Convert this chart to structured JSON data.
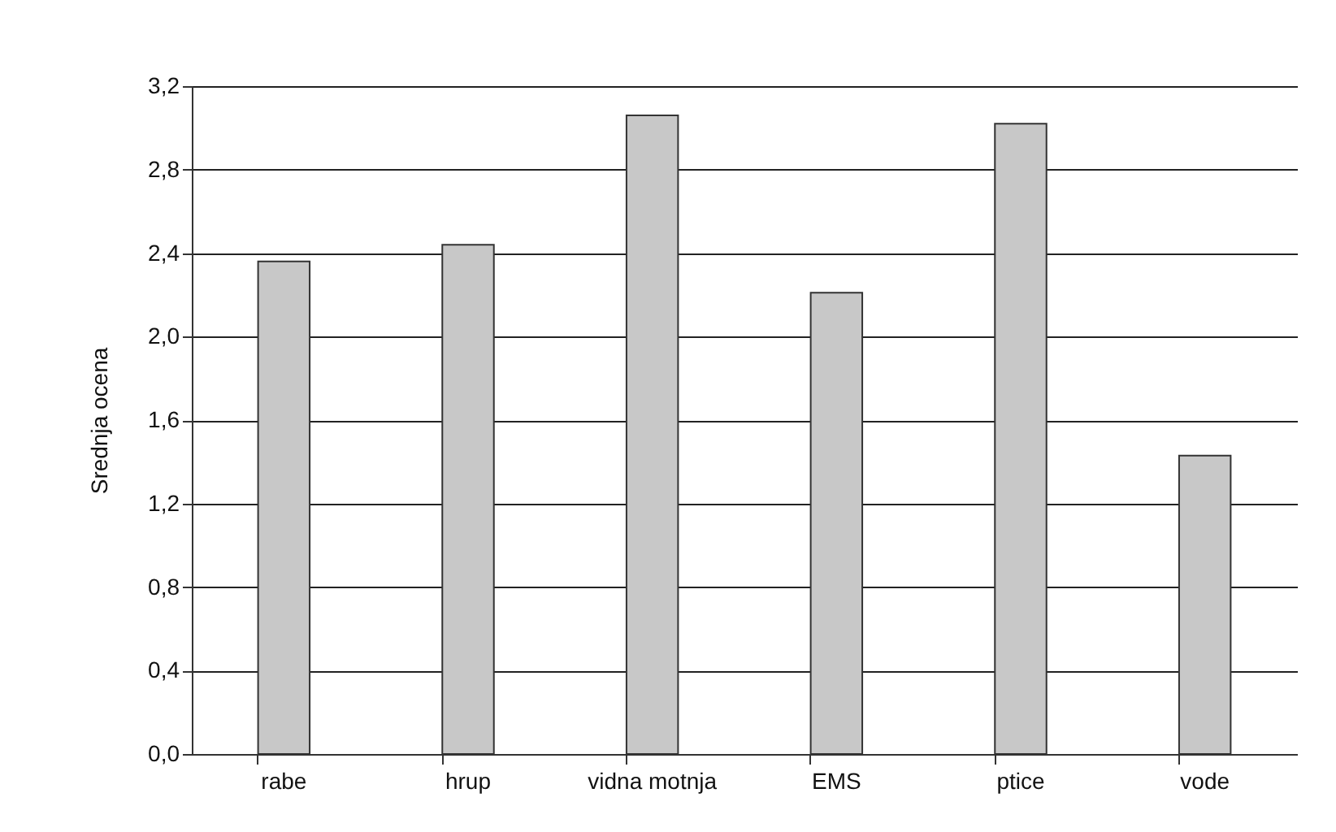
{
  "chart_data": {
    "type": "bar",
    "ylabel": "Srednja ocena",
    "categories": [
      "rabe",
      "hrup",
      "vidna motnja",
      "EMS",
      "ptice",
      "vode"
    ],
    "values": [
      2.36,
      2.44,
      3.06,
      2.21,
      3.02,
      1.43
    ],
    "color": "#c8c8c8",
    "ylim": [
      0,
      3.2
    ],
    "yticks": [
      {
        "value": 0,
        "label": "0,0"
      },
      {
        "value": 0.4,
        "label": "0,4"
      },
      {
        "value": 0.8,
        "label": "0,8"
      },
      {
        "value": 1.2,
        "label": "1,2"
      },
      {
        "value": 1.6,
        "label": "1,6"
      },
      {
        "value": 2.0,
        "label": "2,0"
      },
      {
        "value": 2.4,
        "label": "2,4"
      },
      {
        "value": 2.8,
        "label": "2,8"
      },
      {
        "value": 3.2,
        "label": "3,2"
      }
    ],
    "grid": "y"
  }
}
